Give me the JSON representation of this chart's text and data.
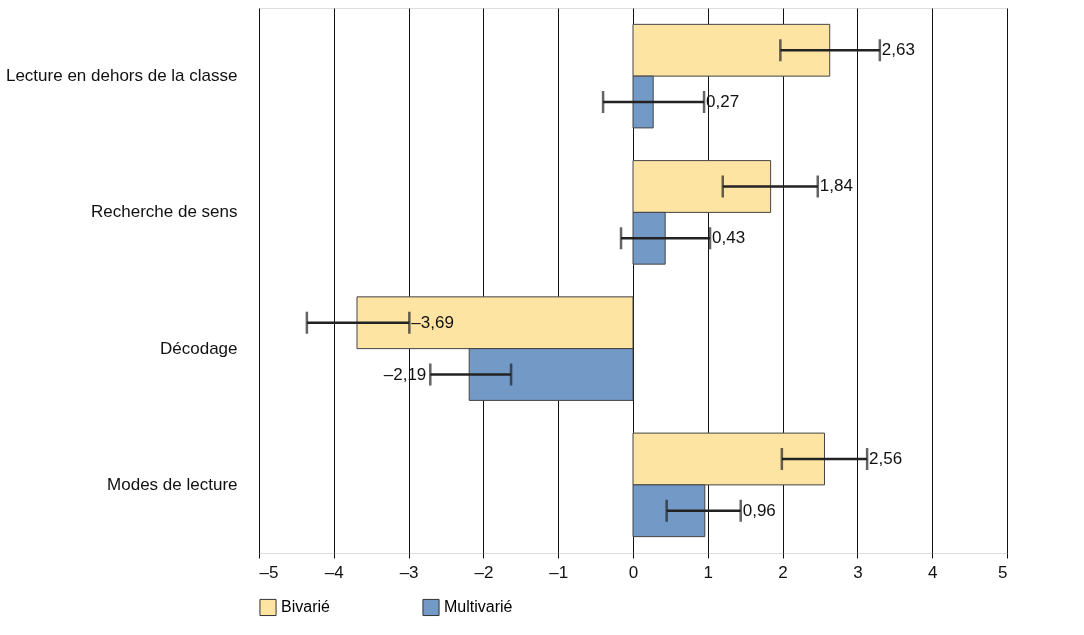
{
  "chart_data": {
    "type": "bar",
    "orientation": "horizontal",
    "categories": [
      "Lecture en dehors de la classe",
      "Recherche de sens",
      "Décodage",
      "Modes de lecture"
    ],
    "series": [
      {
        "name": "Bivarié",
        "color": "#fde4a2",
        "values": [
          2.63,
          1.84,
          -3.69,
          2.56
        ],
        "errors": [
          [
            1.97,
            3.3
          ],
          [
            1.2,
            2.47
          ],
          [
            -4.36,
            -2.99
          ],
          [
            1.99,
            3.13
          ]
        ],
        "value_labels": [
          "2,63",
          "1,84",
          "–3,69",
          "2,56"
        ]
      },
      {
        "name": "Multivarié",
        "color": "#7399c6",
        "values": [
          0.27,
          0.43,
          -2.19,
          0.96
        ],
        "errors": [
          [
            -0.4,
            0.95
          ],
          [
            -0.16,
            1.03
          ],
          [
            -2.71,
            -1.63
          ],
          [
            0.45,
            1.44
          ]
        ],
        "value_labels": [
          "0,27",
          "0,43",
          "–2,19",
          "0,96"
        ]
      }
    ],
    "xlim": [
      -5,
      5
    ],
    "xticks": [
      {
        "value": -5,
        "label": "–5"
      },
      {
        "value": -4,
        "label": "–4"
      },
      {
        "value": -3,
        "label": "–3"
      },
      {
        "value": -2,
        "label": "–2"
      },
      {
        "value": -1,
        "label": "–1"
      },
      0,
      1,
      2,
      3,
      4,
      5
    ],
    "grid": "x",
    "legend": "bottom"
  }
}
